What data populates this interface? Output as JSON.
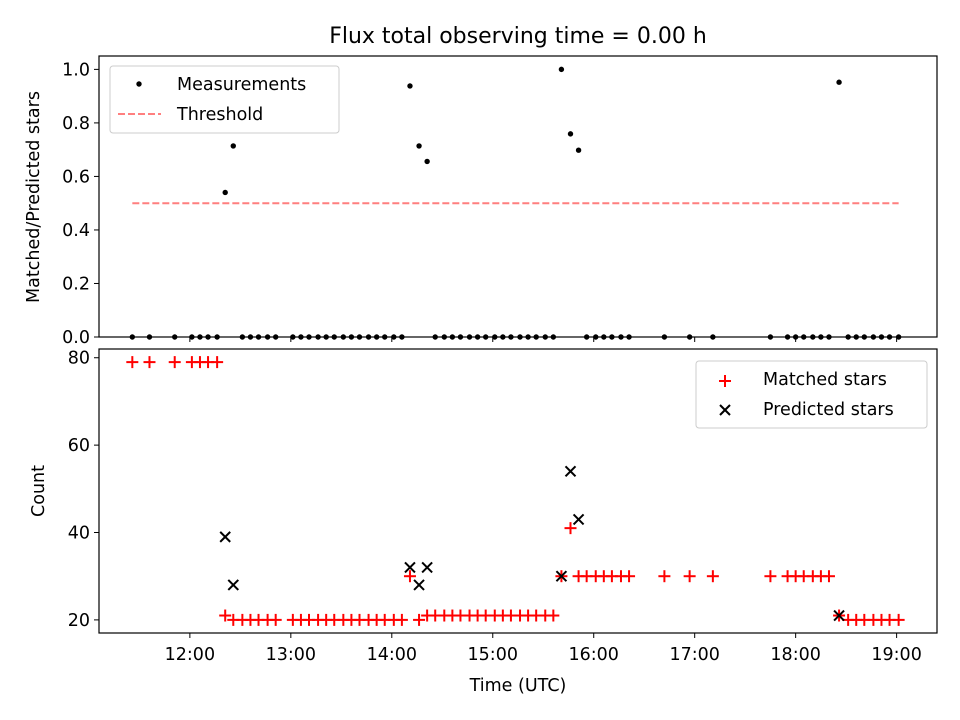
{
  "chart_data": [
    {
      "type": "scatter",
      "title": "Flux total observing time = 0.00 h",
      "ylabel": "Matched/Predicted stars",
      "xlim": [
        11.1,
        19.4
      ],
      "ylim": [
        0,
        1.05
      ],
      "yticks": [
        "0.0",
        "0.2",
        "0.4",
        "0.6",
        "0.8",
        "1.0"
      ],
      "legend_position": "upper-left",
      "series": [
        {
          "name": "Measurements",
          "color": "#000000",
          "marker": "dot",
          "x": [
            11.43,
            11.6,
            11.85,
            12.02,
            12.1,
            12.18,
            12.27,
            12.35,
            12.43,
            12.52,
            12.6,
            12.68,
            12.77,
            12.85,
            13.02,
            13.1,
            13.18,
            13.27,
            13.35,
            13.43,
            13.52,
            13.6,
            13.68,
            13.77,
            13.85,
            13.93,
            14.02,
            14.1,
            14.18,
            14.27,
            14.35,
            14.43,
            14.52,
            14.6,
            14.68,
            14.77,
            14.85,
            14.93,
            15.02,
            15.1,
            15.18,
            15.27,
            15.35,
            15.43,
            15.52,
            15.6,
            15.68,
            15.77,
            15.85,
            15.93,
            16.02,
            16.1,
            16.18,
            16.27,
            16.35,
            16.7,
            16.95,
            17.18,
            17.75,
            17.92,
            18.0,
            18.08,
            18.17,
            18.25,
            18.33,
            18.43,
            18.52,
            18.6,
            18.68,
            18.77,
            18.85,
            18.93,
            19.02
          ],
          "y": [
            0,
            0,
            0,
            0,
            0,
            0,
            0,
            0.54,
            0.714,
            0,
            0,
            0,
            0,
            0,
            0,
            0,
            0,
            0,
            0,
            0,
            0,
            0,
            0,
            0,
            0,
            0,
            0,
            0,
            0.938,
            0.714,
            0.656,
            0,
            0,
            0,
            0,
            0,
            0,
            0,
            0,
            0,
            0,
            0,
            0,
            0,
            0,
            0,
            1.0,
            0.759,
            0.698,
            0,
            0,
            0,
            0,
            0,
            0,
            0,
            0,
            0,
            0,
            0,
            0,
            0,
            0,
            0,
            0,
            0.952,
            0,
            0,
            0,
            0,
            0,
            0,
            0
          ]
        },
        {
          "name": "Threshold",
          "color": "#ff7f7f",
          "style": "dashed",
          "x": [
            11.43,
            19.02
          ],
          "y": [
            0.5,
            0.5
          ]
        }
      ]
    },
    {
      "type": "scatter",
      "xlabel": "Time (UTC)",
      "ylabel": "Count",
      "xlim": [
        11.1,
        19.4
      ],
      "ylim": [
        17,
        82
      ],
      "yticks": [
        "20",
        "40",
        "60",
        "80"
      ],
      "xticks": [
        "12:00",
        "13:00",
        "14:00",
        "15:00",
        "16:00",
        "17:00",
        "18:00",
        "19:00"
      ],
      "xtick_values": [
        12,
        13,
        14,
        15,
        16,
        17,
        18,
        19
      ],
      "legend_position": "upper-right",
      "series": [
        {
          "name": "Matched stars",
          "color": "#ff0000",
          "marker": "plus",
          "x": [
            11.43,
            11.6,
            11.85,
            12.02,
            12.1,
            12.18,
            12.27,
            12.35,
            12.43,
            12.52,
            12.6,
            12.68,
            12.77,
            12.85,
            13.02,
            13.1,
            13.18,
            13.27,
            13.35,
            13.43,
            13.52,
            13.6,
            13.68,
            13.77,
            13.85,
            13.93,
            14.02,
            14.1,
            14.18,
            14.27,
            14.35,
            14.43,
            14.52,
            14.6,
            14.68,
            14.77,
            14.85,
            14.93,
            15.02,
            15.1,
            15.18,
            15.27,
            15.35,
            15.43,
            15.52,
            15.6,
            15.68,
            15.77,
            15.85,
            15.93,
            16.02,
            16.1,
            16.18,
            16.27,
            16.35,
            16.7,
            16.95,
            17.18,
            17.75,
            17.92,
            18.0,
            18.08,
            18.17,
            18.25,
            18.33,
            18.43,
            18.52,
            18.6,
            18.68,
            18.77,
            18.85,
            18.93,
            19.02
          ],
          "y": [
            79,
            79,
            79,
            79,
            79,
            79,
            79,
            21,
            20,
            20,
            20,
            20,
            20,
            20,
            20,
            20,
            20,
            20,
            20,
            20,
            20,
            20,
            20,
            20,
            20,
            20,
            20,
            20,
            30,
            20,
            21,
            21,
            21,
            21,
            21,
            21,
            21,
            21,
            21,
            21,
            21,
            21,
            21,
            21,
            21,
            21,
            30,
            41,
            30,
            30,
            30,
            30,
            30,
            30,
            30,
            30,
            30,
            30,
            30,
            30,
            30,
            30,
            30,
            30,
            30,
            21,
            20,
            20,
            20,
            20,
            20,
            20,
            20
          ]
        },
        {
          "name": "Predicted stars",
          "color": "#000000",
          "marker": "x",
          "x": [
            12.35,
            12.43,
            14.18,
            14.27,
            14.35,
            15.68,
            15.77,
            15.85,
            18.43
          ],
          "y": [
            39,
            28,
            32,
            28,
            32,
            30,
            54,
            43,
            21
          ]
        }
      ]
    }
  ]
}
